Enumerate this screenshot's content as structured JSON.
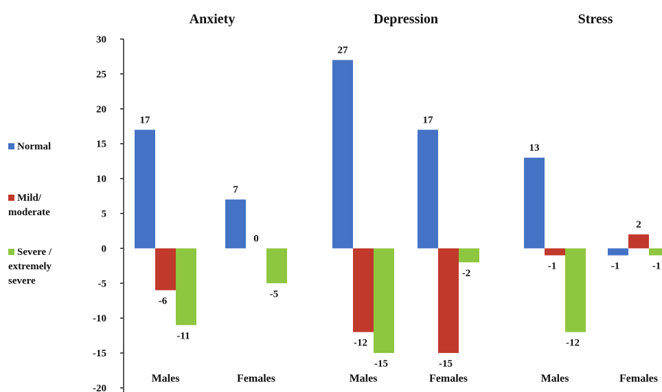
{
  "chart_data": {
    "type": "bar",
    "ylim": [
      -20,
      30
    ],
    "yticks": [
      30,
      25,
      20,
      15,
      10,
      5,
      0,
      -5,
      -10,
      -15,
      -20
    ],
    "grid": false,
    "legend_position": "left",
    "series": [
      {
        "name": "Normal",
        "color": "#4472c4"
      },
      {
        "name": "Mild/ moderate",
        "color": "#c0392b"
      },
      {
        "name": "Severe / extremely severe",
        "color": "#8dc63f"
      }
    ],
    "groups": [
      {
        "title": "Anxiety",
        "categories": [
          {
            "label": "Males",
            "values": [
              17,
              -6,
              -11
            ]
          },
          {
            "label": "Females",
            "values": [
              7,
              0,
              -5
            ]
          }
        ]
      },
      {
        "title": "Depression",
        "categories": [
          {
            "label": "Males",
            "values": [
              27,
              -12,
              -15
            ]
          },
          {
            "label": "Females",
            "values": [
              17,
              -15,
              -2
            ]
          }
        ]
      },
      {
        "title": "Stress",
        "categories": [
          {
            "label": "Males",
            "values": [
              13,
              -1,
              -12
            ]
          },
          {
            "label": "Females",
            "values": [
              -1,
              2,
              -1
            ]
          }
        ]
      }
    ]
  }
}
